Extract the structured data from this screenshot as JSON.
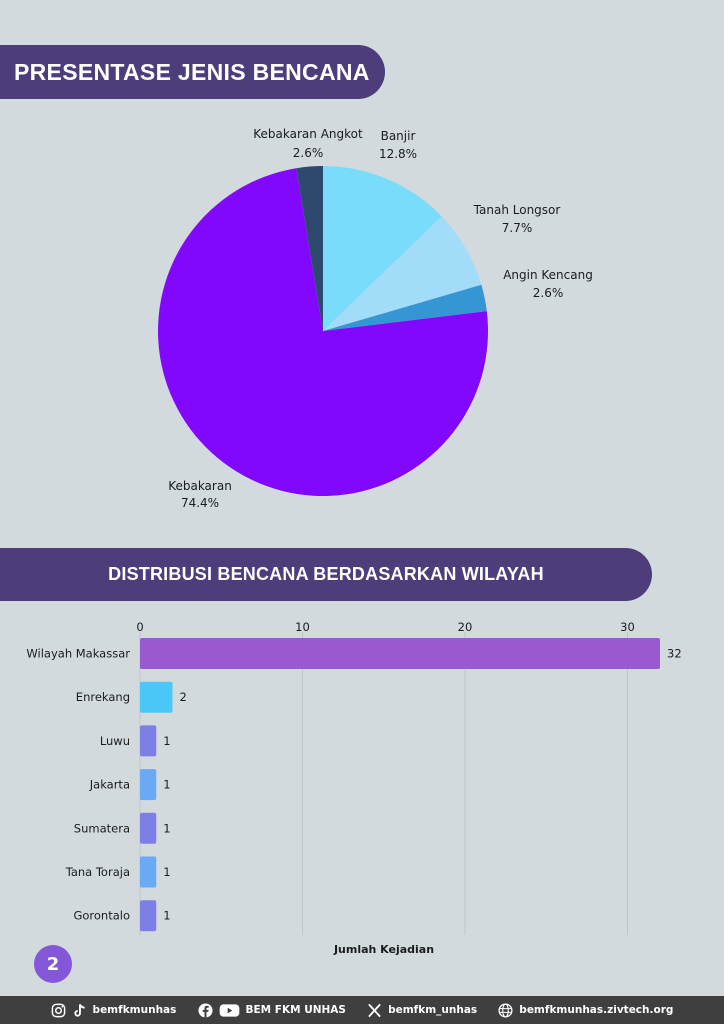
{
  "section1": {
    "title": "PRESENTASE JENIS BENCANA"
  },
  "section2": {
    "title": "DISTRIBUSI BENCANA BERDASARKAN WILAYAH"
  },
  "page_number": "2",
  "footer": {
    "social1": "bemfkmunhas",
    "social2": "BEM FKM UNHAS",
    "social3": "bemfkm_unhas",
    "website": "bemfkmunhas.zivtech.org"
  },
  "icons": [
    "instagram-icon",
    "tiktok-icon",
    "facebook-icon",
    "youtube-icon",
    "x-icon",
    "globe-icon"
  ],
  "chart_data": [
    {
      "type": "pie",
      "title": "PRESENTASE JENIS BENCANA",
      "slices": [
        {
          "label": "Banjir",
          "value": 12.8,
          "display": "12.8%",
          "color": "#79dcfb"
        },
        {
          "label": "Tanah Longsor",
          "value": 7.7,
          "display": "7.7%",
          "color": "#a3dcf9"
        },
        {
          "label": "Angin Kencang",
          "value": 2.6,
          "display": "2.6%",
          "color": "#3696d4"
        },
        {
          "label": "Kebakaran",
          "value": 74.4,
          "display": "74.4%",
          "color": "#8107fd"
        },
        {
          "label": "Kebakaran Angkot",
          "value": 2.6,
          "display": "2.6%",
          "color": "#2d4a6e"
        }
      ]
    },
    {
      "type": "bar",
      "orientation": "horizontal",
      "title": "DISTRIBUSI BENCANA BERDASARKAN WILAYAH",
      "categories": [
        "Wilayah Makassar",
        "Enrekang",
        "Luwu",
        "Jakarta",
        "Sumatera",
        "Tana Toraja",
        "Gorontalo"
      ],
      "values": [
        32,
        2,
        1,
        1,
        1,
        1,
        1
      ],
      "colors": [
        "#9a59cf",
        "#4bc7f7",
        "#7c80e6",
        "#6aa9f3",
        "#7c80e6",
        "#6aa9f3",
        "#7c80e6"
      ],
      "xlabel": "Jumlah Kejadian",
      "xlim": [
        0,
        32
      ],
      "xticks": [
        0,
        10,
        20,
        30
      ],
      "grid": true,
      "axis_position": "top"
    }
  ]
}
